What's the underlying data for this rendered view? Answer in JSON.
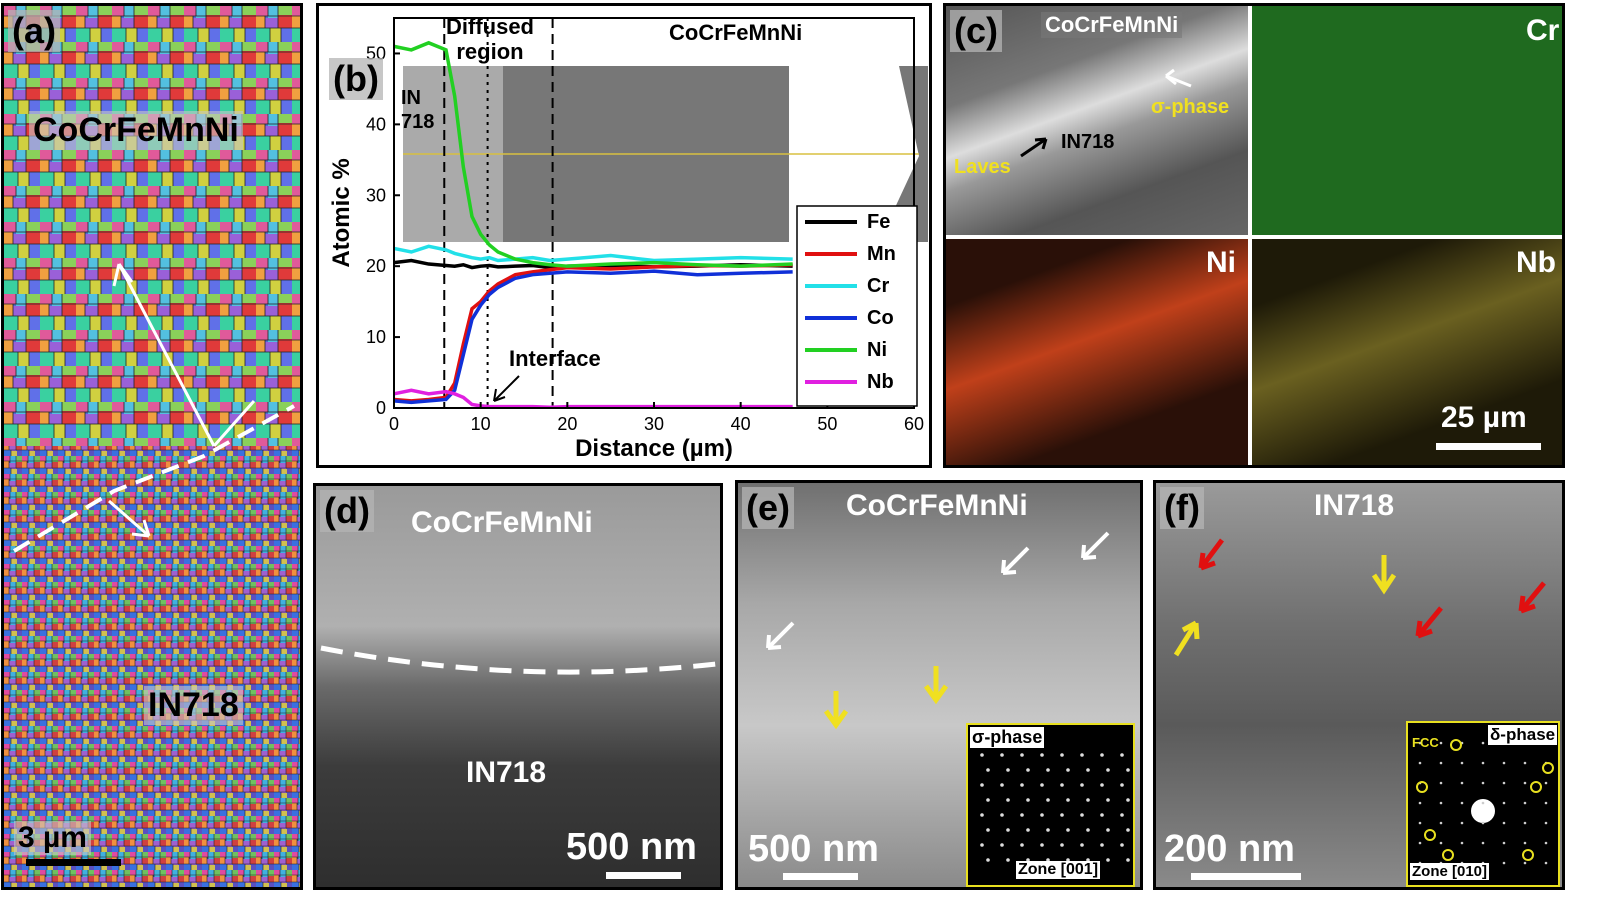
{
  "panels": {
    "a": {
      "label": "(a)",
      "top_text": "CoCrFeMnNi",
      "bottom_text": "IN718",
      "scale": "3 µm"
    },
    "b": {
      "label": "(b)",
      "title": "CoCrFeMnNi",
      "region_in": "IN\n718",
      "region_diffused": "Diffused\nregion",
      "interface_label": "Interface"
    },
    "c": {
      "label": "(c)",
      "top_text": "CoCrFeMnNi",
      "sigma": "σ-phase",
      "in718": "IN718",
      "laves": "Laves",
      "cr": "Cr",
      "ni": "Ni",
      "nb": "Nb",
      "scale": "25 µm"
    },
    "d": {
      "label": "(d)",
      "top_text": "CoCrFeMnNi",
      "bottom_text": "IN718",
      "scale": "500 nm"
    },
    "e": {
      "label": "(e)",
      "top_text": "CoCrFeMnNi",
      "scale": "500 nm",
      "inset_title": "σ-phase",
      "inset_zone": "Zone [001]"
    },
    "f": {
      "label": "(f)",
      "top_text": "IN718",
      "scale": "200 nm",
      "inset_fcc": "FCC",
      "inset_title": "δ-phase",
      "inset_zone": "Zone [010]"
    }
  },
  "chart_data": {
    "type": "line",
    "xlabel": "Distance (µm)",
    "ylabel": "Atomic %",
    "xlim": [
      0,
      60
    ],
    "ylim": [
      0,
      55
    ],
    "xticks": [
      0,
      10,
      20,
      30,
      40,
      50,
      60
    ],
    "yticks": [
      0,
      10,
      20,
      30,
      40,
      50
    ],
    "x": [
      0,
      2,
      4,
      6,
      7,
      8,
      9,
      10,
      11,
      12,
      14,
      16,
      18,
      20,
      25,
      30,
      35,
      40,
      46
    ],
    "series": [
      {
        "name": "Fe",
        "color": "#000000",
        "values": [
          20.5,
          20.8,
          20.3,
          20.1,
          20.0,
          20.2,
          19.8,
          20.0,
          20.1,
          19.9,
          20.0,
          20.1,
          19.8,
          20.0,
          20.1,
          19.9,
          20.0,
          20.2,
          20.0
        ]
      },
      {
        "name": "Mn",
        "color": "#e01010",
        "values": [
          1.2,
          1.0,
          1.2,
          1.5,
          3.5,
          9.0,
          14.0,
          15.0,
          16.5,
          17.5,
          18.8,
          19.2,
          19.5,
          19.8,
          19.6,
          19.9,
          20.1,
          20.0,
          20.2
        ]
      },
      {
        "name": "Cr",
        "color": "#22e0e8",
        "values": [
          22.5,
          22.0,
          22.8,
          22.3,
          21.8,
          21.5,
          21.2,
          21.0,
          21.2,
          20.8,
          21.0,
          21.2,
          20.8,
          21.0,
          21.5,
          20.8,
          21.0,
          21.2,
          21.0
        ]
      },
      {
        "name": "Co",
        "color": "#1030d8",
        "values": [
          1.0,
          0.8,
          1.0,
          1.2,
          2.5,
          7.5,
          12.5,
          14.5,
          16.0,
          17.0,
          18.3,
          18.8,
          19.0,
          19.2,
          19.0,
          19.3,
          18.8,
          19.0,
          19.2
        ]
      },
      {
        "name": "Ni",
        "color": "#22d022",
        "values": [
          51.0,
          50.5,
          51.5,
          50.5,
          44.0,
          34.0,
          27.0,
          24.5,
          23.0,
          22.0,
          21.0,
          20.5,
          20.2,
          20.0,
          20.3,
          20.5,
          20.2,
          20.0,
          20.3
        ]
      },
      {
        "name": "Nb",
        "color": "#e020e0",
        "values": [
          2.0,
          2.5,
          2.0,
          2.3,
          2.0,
          1.5,
          0.5,
          0.3,
          0.2,
          0.2,
          0.2,
          0.2,
          0.1,
          0.2,
          0.2,
          0.2,
          0.2,
          0.2,
          0.2
        ]
      }
    ],
    "vlines": [
      5.8,
      10.8,
      18.3
    ],
    "legend": "right"
  }
}
